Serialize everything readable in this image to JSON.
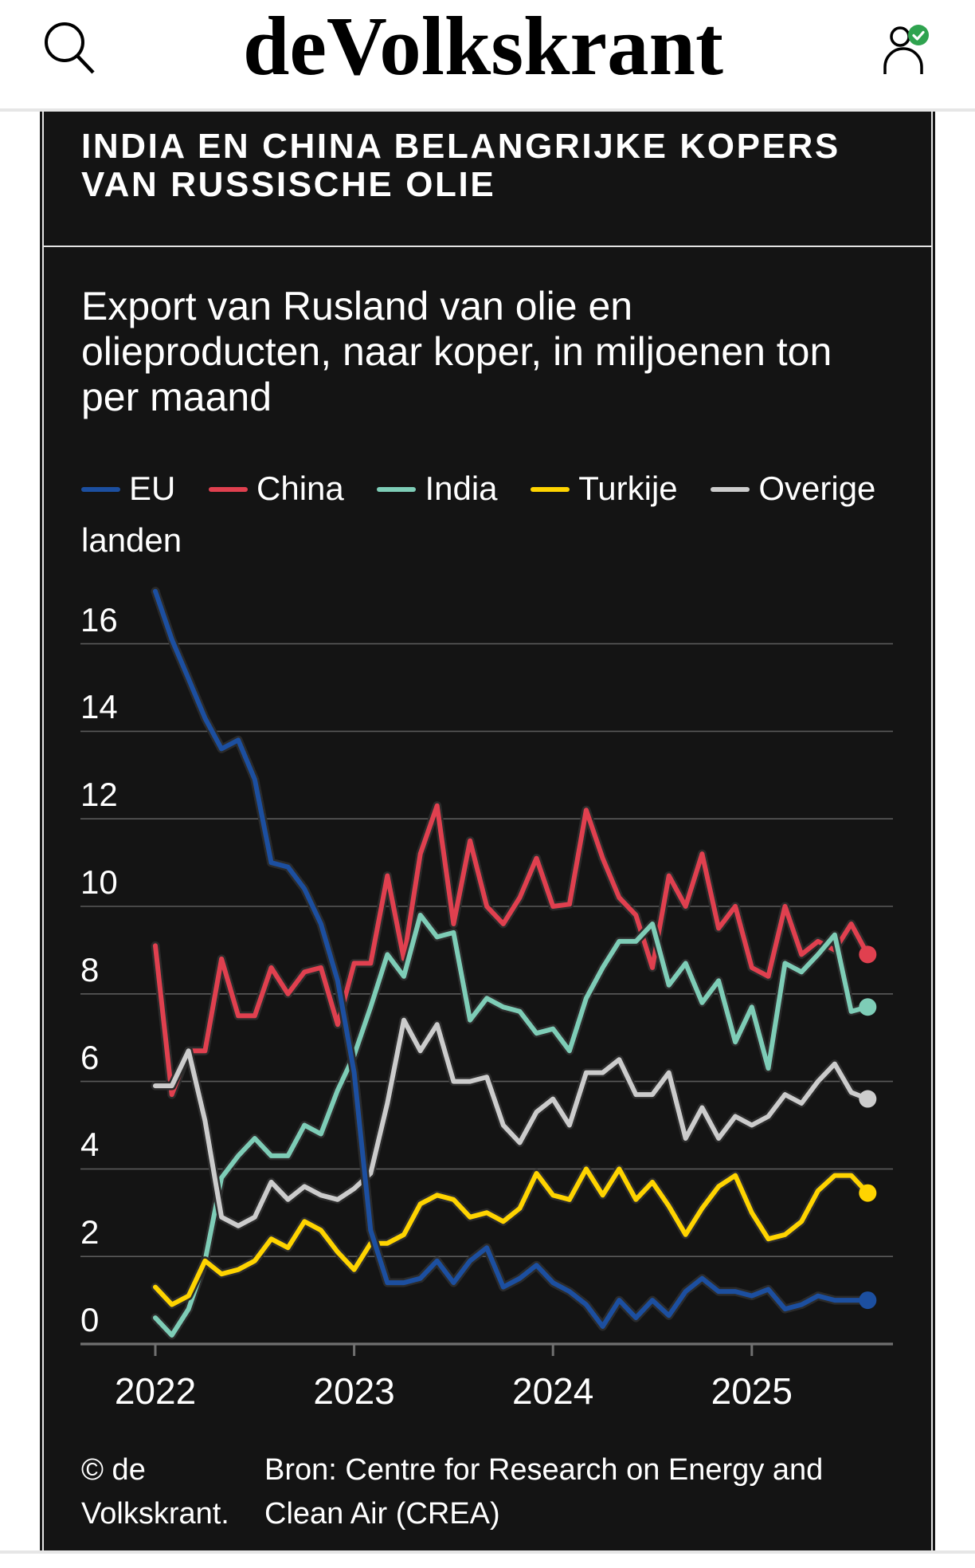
{
  "header": {
    "logo": "deVolkskrant",
    "search_icon": "search-icon",
    "account_icon": "user-verified-icon",
    "badge_color": "#2fa34f"
  },
  "panel": {
    "title_lines": [
      "INDIA EN CHINA BELANGRIJKE KOPERS",
      "VAN RUSSISCHE OLIE"
    ],
    "subtitle_lines": [
      "Export van Rusland van olie en",
      "olieproducten, naar koper, in miljoenen ton",
      "per maand"
    ],
    "credit": "© de Volkskrant.",
    "source": "Bron: Centre for Research on Energy and Clean Air (CREA)",
    "background": "#141414"
  },
  "chart_data": {
    "type": "line",
    "title": "INDIA EN CHINA BELANGRIJKE KOPERS VAN RUSSISCHE OLIE",
    "ylabel": "miljoenen ton per maand",
    "ylim": [
      0,
      16
    ],
    "xlim": [
      2021.62,
      2025.71
    ],
    "yticks": [
      "0",
      "2",
      "4",
      "6",
      "8",
      "10",
      "12",
      "14",
      "16"
    ],
    "ytick_values": [
      0,
      2,
      4,
      6,
      8,
      10,
      12,
      14,
      16
    ],
    "xticks": [
      "2022",
      "2023",
      "2024",
      "2025"
    ],
    "xtick_values": [
      2022,
      2023,
      2024,
      2025
    ],
    "grid": true,
    "legend_position": "top",
    "x": [
      2022.0,
      2022.083,
      2022.167,
      2022.25,
      2022.333,
      2022.417,
      2022.5,
      2022.583,
      2022.667,
      2022.75,
      2022.833,
      2022.917,
      2023.0,
      2023.083,
      2023.167,
      2023.25,
      2023.333,
      2023.417,
      2023.5,
      2023.583,
      2023.667,
      2023.75,
      2023.833,
      2023.917,
      2024.0,
      2024.083,
      2024.167,
      2024.25,
      2024.333,
      2024.417,
      2024.5,
      2024.583,
      2024.667,
      2024.75,
      2024.833,
      2024.917,
      2025.0,
      2025.083,
      2025.167,
      2025.25,
      2025.333,
      2025.417,
      2025.5,
      2025.583
    ],
    "series": [
      {
        "name": "EU",
        "color": "#1c4fa0",
        "values": [
          17.2,
          16.1,
          15.2,
          14.3,
          13.6,
          13.8,
          12.9,
          11.0,
          10.9,
          10.4,
          9.6,
          8.3,
          6.2,
          2.6,
          1.4,
          1.4,
          1.5,
          1.9,
          1.4,
          1.9,
          2.2,
          1.3,
          1.5,
          1.8,
          1.4,
          1.2,
          0.9,
          0.4,
          1.0,
          0.6,
          1.0,
          0.65,
          1.2,
          1.5,
          1.2,
          1.2,
          1.1,
          1.25,
          0.8,
          0.9,
          1.1,
          1.0,
          1.0,
          1.0
        ]
      },
      {
        "name": "China",
        "color": "#e0404f",
        "values": [
          9.1,
          5.7,
          6.7,
          6.7,
          8.8,
          7.5,
          7.5,
          8.6,
          8.0,
          8.5,
          8.6,
          7.3,
          8.7,
          8.7,
          10.7,
          8.8,
          11.2,
          12.3,
          9.6,
          11.5,
          10.0,
          9.6,
          10.2,
          11.1,
          10.0,
          10.05,
          12.2,
          11.1,
          10.2,
          9.8,
          8.6,
          10.7,
          10.0,
          11.2,
          9.5,
          10.0,
          8.6,
          8.4,
          10.0,
          8.9,
          9.2,
          9.0,
          9.6,
          8.9
        ]
      },
      {
        "name": "India",
        "color": "#7ecdb7",
        "values": [
          0.6,
          0.2,
          0.8,
          1.9,
          3.8,
          4.3,
          4.7,
          4.3,
          4.3,
          5.0,
          4.8,
          5.8,
          6.6,
          7.7,
          8.9,
          8.4,
          9.8,
          9.3,
          9.4,
          7.4,
          7.9,
          7.7,
          7.6,
          7.1,
          7.2,
          6.7,
          7.9,
          8.6,
          9.2,
          9.2,
          9.6,
          8.2,
          8.7,
          7.8,
          8.3,
          6.9,
          7.7,
          6.3,
          8.7,
          8.5,
          8.9,
          9.35,
          7.6,
          7.7
        ]
      },
      {
        "name": "Turkije",
        "color": "#ffd400",
        "values": [
          1.3,
          0.9,
          1.1,
          1.9,
          1.6,
          1.7,
          1.9,
          2.4,
          2.2,
          2.8,
          2.6,
          2.1,
          1.7,
          2.3,
          2.3,
          2.5,
          3.2,
          3.4,
          3.3,
          2.9,
          3.0,
          2.8,
          3.1,
          3.9,
          3.4,
          3.3,
          4.0,
          3.4,
          4.0,
          3.3,
          3.7,
          3.15,
          2.5,
          3.1,
          3.6,
          3.85,
          3.0,
          2.4,
          2.5,
          2.8,
          3.5,
          3.85,
          3.85,
          3.45
        ]
      },
      {
        "name": "Overige landen",
        "color": "#cccccc",
        "values": [
          5.9,
          5.9,
          6.7,
          5.1,
          2.9,
          2.7,
          2.9,
          3.7,
          3.3,
          3.6,
          3.4,
          3.3,
          3.55,
          3.9,
          5.5,
          7.4,
          6.7,
          7.3,
          6.0,
          6.0,
          6.1,
          5.0,
          4.6,
          5.3,
          5.6,
          5.0,
          6.2,
          6.2,
          6.5,
          5.7,
          5.7,
          6.2,
          4.7,
          5.4,
          4.7,
          5.2,
          5.0,
          5.2,
          5.7,
          5.5,
          6.0,
          6.4,
          5.75,
          5.6
        ]
      }
    ],
    "draw_order": [
      "China",
      "India",
      "Overige landen",
      "Turkije",
      "EU"
    ],
    "gridline_color": "#5a5a5a",
    "axis_color": "#707070"
  }
}
